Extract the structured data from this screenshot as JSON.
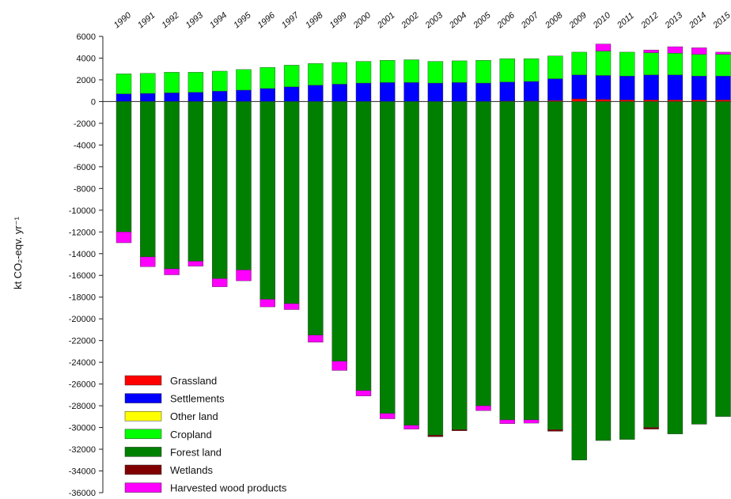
{
  "chart_data": {
    "type": "bar",
    "stacked": true,
    "ylabel": "kt CO₂-eqv. yr⁻¹",
    "ylim": [
      -36000,
      6000
    ],
    "yticks": [
      6000,
      4000,
      2000,
      0,
      -2000,
      -4000,
      -6000,
      -8000,
      -10000,
      -12000,
      -14000,
      -16000,
      -18000,
      -20000,
      -22000,
      -24000,
      -26000,
      -28000,
      -30000,
      -32000,
      -34000,
      -36000
    ],
    "legend_position": "bottom-left",
    "categories": [
      "1990",
      "1991",
      "1992",
      "1993",
      "1994",
      "1995",
      "1996",
      "1997",
      "1998",
      "1999",
      "2000",
      "2001",
      "2002",
      "2003",
      "2004",
      "2005",
      "2006",
      "2007",
      "2008",
      "2009",
      "2010",
      "2011",
      "2012",
      "2013",
      "2014",
      "2015"
    ],
    "series": [
      {
        "name": "Grassland",
        "color": "#ff0000",
        "values": [
          0,
          0,
          0,
          0,
          0,
          0,
          0,
          0,
          0,
          0,
          0,
          0,
          0,
          0,
          0,
          0,
          50,
          50,
          100,
          250,
          200,
          150,
          150,
          150,
          150,
          150
        ]
      },
      {
        "name": "Settlements",
        "color": "#0000ff",
        "values": [
          700,
          750,
          800,
          850,
          950,
          1050,
          1200,
          1350,
          1500,
          1600,
          1700,
          1750,
          1750,
          1700,
          1750,
          1700,
          1750,
          1800,
          2000,
          2200,
          2200,
          2200,
          2300,
          2300,
          2200,
          2200
        ]
      },
      {
        "name": "Other land",
        "color": "#ffff00",
        "values": [
          0,
          0,
          0,
          0,
          0,
          0,
          0,
          0,
          0,
          0,
          0,
          0,
          0,
          0,
          0,
          0,
          0,
          0,
          0,
          0,
          0,
          0,
          0,
          0,
          0,
          0
        ]
      },
      {
        "name": "Cropland",
        "color": "#00ff00",
        "values": [
          1850,
          1850,
          1900,
          1850,
          1850,
          1900,
          1950,
          2000,
          2000,
          2000,
          2000,
          2050,
          2100,
          2000,
          2000,
          2100,
          2150,
          2100,
          2100,
          2100,
          2250,
          2200,
          2050,
          2000,
          2000,
          2000
        ]
      },
      {
        "name": "Forest land",
        "color": "#008000",
        "values": [
          -12000,
          -14300,
          -15400,
          -14700,
          -16300,
          -15500,
          -18200,
          -18600,
          -21500,
          -23900,
          -26600,
          -28700,
          -29800,
          -30700,
          -30200,
          -28000,
          -29300,
          -29300,
          -30200,
          -33000,
          -31200,
          -31100,
          -30000,
          -30600,
          -29700,
          -29000
        ]
      },
      {
        "name": "Wetlands",
        "color": "#800000",
        "values": [
          0,
          0,
          0,
          0,
          0,
          0,
          0,
          0,
          0,
          0,
          0,
          0,
          0,
          -150,
          -100,
          0,
          0,
          0,
          -150,
          0,
          0,
          0,
          -150,
          0,
          0,
          0
        ]
      },
      {
        "name": "Harvested wood products",
        "color": "#ff00ff",
        "values": [
          -1000,
          -900,
          -550,
          -450,
          -750,
          -1000,
          -700,
          -550,
          -650,
          -850,
          -500,
          -500,
          -350,
          0,
          0,
          -450,
          -350,
          -300,
          0,
          0,
          650,
          0,
          250,
          600,
          600,
          200
        ]
      }
    ]
  }
}
